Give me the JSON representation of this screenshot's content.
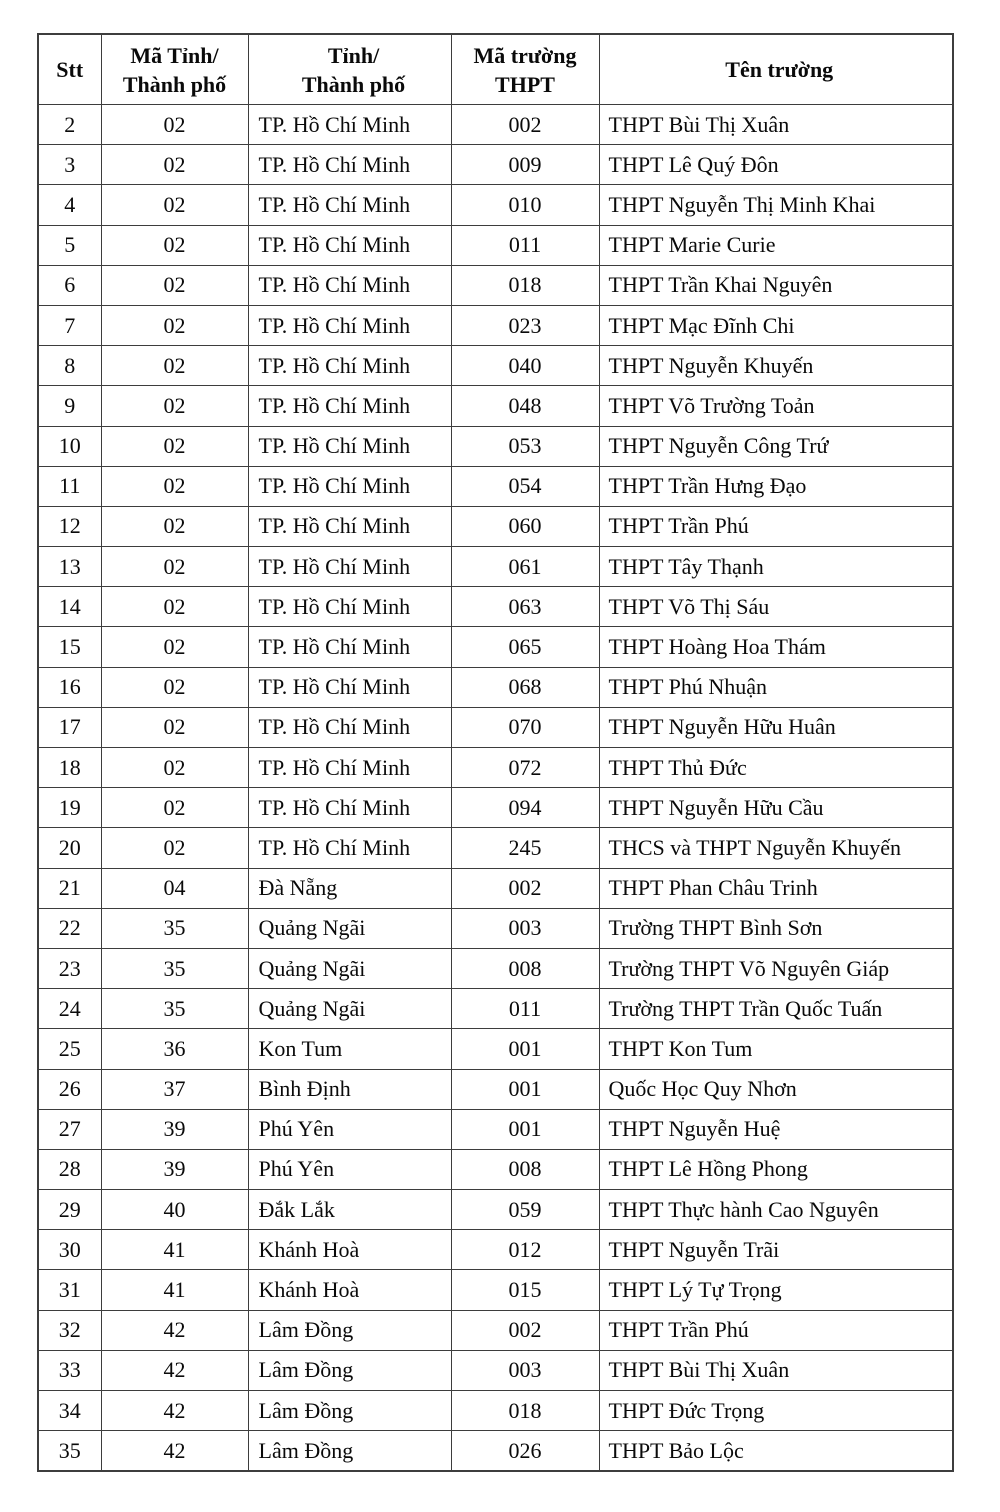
{
  "colors": {
    "background": "#ffffff",
    "border": "#3d3d3d",
    "text": "#0a0a0a"
  },
  "table": {
    "columns": [
      {
        "key": "stt",
        "label": "Stt"
      },
      {
        "key": "ma_tinh",
        "label": "Mã Tỉnh/\nThành phố"
      },
      {
        "key": "tinh",
        "label": "Tỉnh/\nThành phố"
      },
      {
        "key": "ma_truong",
        "label": "Mã trường\nTHPT"
      },
      {
        "key": "ten_truong",
        "label": "Tên trường"
      }
    ],
    "rows": [
      [
        "2",
        "02",
        "TP. Hồ Chí Minh",
        "002",
        "THPT Bùi Thị Xuân"
      ],
      [
        "3",
        "02",
        "TP. Hồ Chí Minh",
        "009",
        "THPT Lê Quý Đôn"
      ],
      [
        "4",
        "02",
        "TP. Hồ Chí Minh",
        "010",
        "THPT Nguyễn Thị Minh Khai"
      ],
      [
        "5",
        "02",
        "TP. Hồ Chí Minh",
        "011",
        "THPT Marie Curie"
      ],
      [
        "6",
        "02",
        "TP. Hồ Chí Minh",
        "018",
        "THPT Trần Khai Nguyên"
      ],
      [
        "7",
        "02",
        "TP. Hồ Chí Minh",
        "023",
        "THPT Mạc Đĩnh Chi"
      ],
      [
        "8",
        "02",
        "TP. Hồ Chí Minh",
        "040",
        "THPT Nguyễn Khuyến"
      ],
      [
        "9",
        "02",
        "TP. Hồ Chí Minh",
        "048",
        "THPT Võ Trường Toản"
      ],
      [
        "10",
        "02",
        "TP. Hồ Chí Minh",
        "053",
        "THPT Nguyễn Công Trứ"
      ],
      [
        "11",
        "02",
        "TP. Hồ Chí Minh",
        "054",
        "THPT Trần Hưng Đạo"
      ],
      [
        "12",
        "02",
        "TP. Hồ Chí Minh",
        "060",
        "THPT Trần Phú"
      ],
      [
        "13",
        "02",
        "TP. Hồ Chí Minh",
        "061",
        "THPT Tây Thạnh"
      ],
      [
        "14",
        "02",
        "TP. Hồ Chí Minh",
        "063",
        "THPT Võ Thị Sáu"
      ],
      [
        "15",
        "02",
        "TP. Hồ Chí Minh",
        "065",
        "THPT Hoàng Hoa Thám"
      ],
      [
        "16",
        "02",
        "TP. Hồ Chí Minh",
        "068",
        "THPT Phú Nhuận"
      ],
      [
        "17",
        "02",
        "TP. Hồ Chí Minh",
        "070",
        "THPT Nguyễn Hữu Huân"
      ],
      [
        "18",
        "02",
        "TP. Hồ Chí Minh",
        "072",
        "THPT Thủ Đức"
      ],
      [
        "19",
        "02",
        "TP. Hồ Chí Minh",
        "094",
        "THPT Nguyễn Hữu Cầu"
      ],
      [
        "20",
        "02",
        "TP. Hồ Chí Minh",
        "245",
        "THCS và THPT Nguyễn Khuyến"
      ],
      [
        "21",
        "04",
        "Đà Nẵng",
        "002",
        "THPT Phan Châu Trinh"
      ],
      [
        "22",
        "35",
        "Quảng Ngãi",
        "003",
        "Trường THPT Bình Sơn"
      ],
      [
        "23",
        "35",
        "Quảng Ngãi",
        "008",
        "Trường THPT Võ Nguyên Giáp"
      ],
      [
        "24",
        "35",
        "Quảng Ngãi",
        "011",
        "Trường THPT Trần Quốc Tuấn"
      ],
      [
        "25",
        "36",
        "Kon Tum",
        "001",
        "THPT Kon Tum"
      ],
      [
        "26",
        "37",
        "Bình Định",
        "001",
        "Quốc Học Quy Nhơn"
      ],
      [
        "27",
        "39",
        "Phú Yên",
        "001",
        "THPT Nguyễn Huệ"
      ],
      [
        "28",
        "39",
        "Phú Yên",
        "008",
        "THPT Lê Hồng Phong"
      ],
      [
        "29",
        "40",
        "Đắk Lắk",
        "059",
        "THPT Thực hành Cao Nguyên"
      ],
      [
        "30",
        "41",
        "Khánh Hoà",
        "012",
        "THPT Nguyễn Trãi"
      ],
      [
        "31",
        "41",
        "Khánh Hoà",
        "015",
        "THPT Lý Tự Trọng"
      ],
      [
        "32",
        "42",
        "Lâm Đồng",
        "002",
        "THPT Trần Phú"
      ],
      [
        "33",
        "42",
        "Lâm Đồng",
        "003",
        "THPT Bùi Thị Xuân"
      ],
      [
        "34",
        "42",
        "Lâm Đồng",
        "018",
        "THPT Đức Trọng"
      ],
      [
        "35",
        "42",
        "Lâm Đồng",
        "026",
        "THPT Bảo Lộc"
      ]
    ]
  }
}
